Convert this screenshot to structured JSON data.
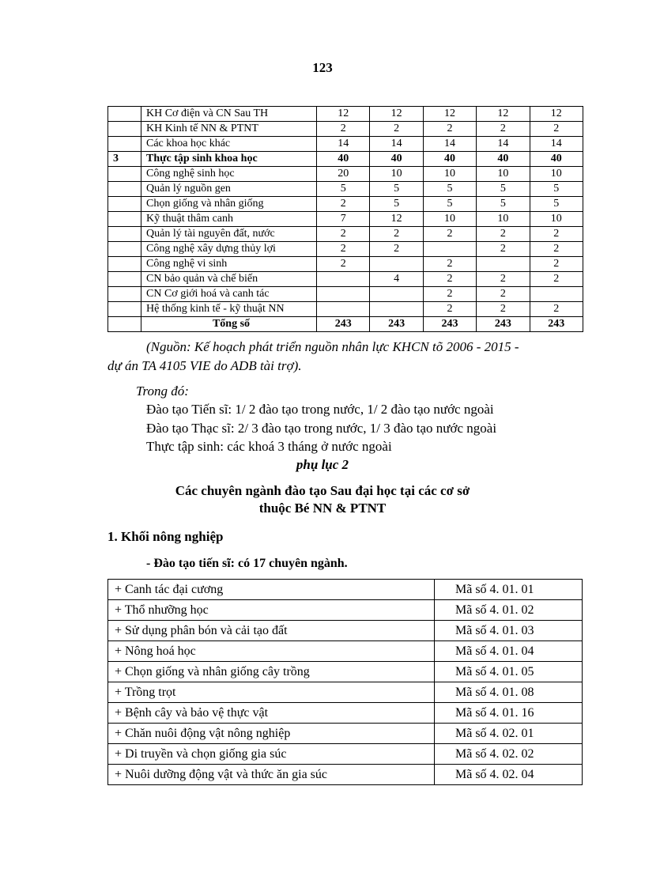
{
  "page_number": "123",
  "table1": {
    "rows": [
      {
        "no": "",
        "name": "KH Cơ điện và CN Sau TH",
        "values": [
          "12",
          "12",
          "12",
          "12",
          "12"
        ],
        "bold": false
      },
      {
        "no": "",
        "name": "KH Kinh tế NN & PTNT",
        "values": [
          "2",
          "2",
          "2",
          "2",
          "2"
        ],
        "bold": false
      },
      {
        "no": "",
        "name": "Các khoa học khác",
        "values": [
          "14",
          "14",
          "14",
          "14",
          "14"
        ],
        "bold": false
      },
      {
        "no": "3",
        "name": "Thực tập sinh khoa học",
        "values": [
          "40",
          "40",
          "40",
          "40",
          "40"
        ],
        "bold": true
      },
      {
        "no": "",
        "name": "Công nghệ  sinh  học",
        "values": [
          "20",
          "10",
          "10",
          "10",
          "10"
        ],
        "bold": false
      },
      {
        "no": "",
        "name": "Quản lý  nguồn  gen",
        "values": [
          "5",
          "5",
          "5",
          "5",
          "5"
        ],
        "bold": false
      },
      {
        "no": "",
        "name": "Chọn giống  và nhân  giống",
        "values": [
          "2",
          "5",
          "5",
          "5",
          "5"
        ],
        "bold": false
      },
      {
        "no": "",
        "name": "Kỹ thuật  thâm  canh",
        "values": [
          "7",
          "12",
          "10",
          "10",
          "10"
        ],
        "bold": false
      },
      {
        "no": "",
        "name": "Quản lý  tài nguyên  đất, nước",
        "values": [
          "2",
          "2",
          "2",
          "2",
          "2"
        ],
        "bold": false
      },
      {
        "no": "",
        "name": "Công nghệ  xây  dựng thủy  lợi",
        "values": [
          "2",
          "2",
          "",
          "2",
          "2"
        ],
        "bold": false
      },
      {
        "no": "",
        "name": "Công nghệ  vi sinh",
        "values": [
          "2",
          "",
          "2",
          "",
          "2"
        ],
        "bold": false
      },
      {
        "no": "",
        "name": "CN bảo quản và chế biến",
        "values": [
          "",
          "4",
          "2",
          "2",
          "2"
        ],
        "bold": false
      },
      {
        "no": "",
        "name": "CN Cơ giới  hoá và canh tác",
        "values": [
          "",
          "",
          "2",
          "2",
          ""
        ],
        "bold": false
      },
      {
        "no": "",
        "name": "Hệ thống kinh tế - kỹ thuật NN",
        "values": [
          "",
          "",
          "2",
          "2",
          "2"
        ],
        "bold": false
      }
    ],
    "total": {
      "label": "Tổng số",
      "values": [
        "243",
        "243",
        "243",
        "243",
        "243"
      ]
    }
  },
  "source_line1": "(Nguồn: Kế hoạch phát triển nguồn nhân lực  KHCN tõ 2006 - 2015 -",
  "source_line2": "dự án TA 4105 VIE do ADB tài trợ).",
  "trong_do": "Trong đó:",
  "notes": [
    "Đào tạo Tiến sĩ: 1/ 2  đào tạo trong nước, 1/ 2  đào tạo nước ngoài",
    "Đào tạo Thạc sĩ: 2/ 3  đào tạo trong nước, 1/ 3  đào tạo nước ngoài",
    "Thực tập sinh:  các khoá 3 tháng ở nước ngoài"
  ],
  "appendix_label": "phụ lục 2",
  "appendix_title_line1": "Các chuyên ngành đào tạo Sau đại học tại các cơ sở",
  "appendix_title_line2": "thuộc Bé NN & PTNT",
  "section_heading": "1. Khối nông nghiệp",
  "subsection": "- Đào tạo tiến sĩ: có 17 chuyên ngành.",
  "table2": [
    {
      "name": " + Canh tác đại cương",
      "code": "Mã số 4. 01. 01"
    },
    {
      "name": "+ Thổ nhưỡng học",
      "code": "Mã số 4. 01. 02"
    },
    {
      "name": "+ Sử dụng phân bón và cải tạo đất",
      "code": "Mã số 4. 01. 03"
    },
    {
      "name": "+ Nông hoá học",
      "code": "Mã số 4. 01. 04"
    },
    {
      "name": "+ Chọn giống và nhân giống cây trồng",
      "code": "Mã số 4. 01. 05"
    },
    {
      "name": "+ Trồng trọt",
      "code": "Mã số 4. 01. 08"
    },
    {
      "name": "+ Bệnh cây và bảo vệ thực vật",
      "code": "Mã số 4. 01. 16"
    },
    {
      "name": "+ Chăn nuôi động vật nông nghiệp",
      "code": "Mã số 4. 02. 01"
    },
    {
      "name": "+ Di truyền và chọn giống gia súc",
      "code": "Mã số 4. 02. 02"
    },
    {
      "name": "+ Nuôi dưỡng động vật và thức ăn gia súc",
      "code": "Mã số 4. 02. 04"
    }
  ]
}
